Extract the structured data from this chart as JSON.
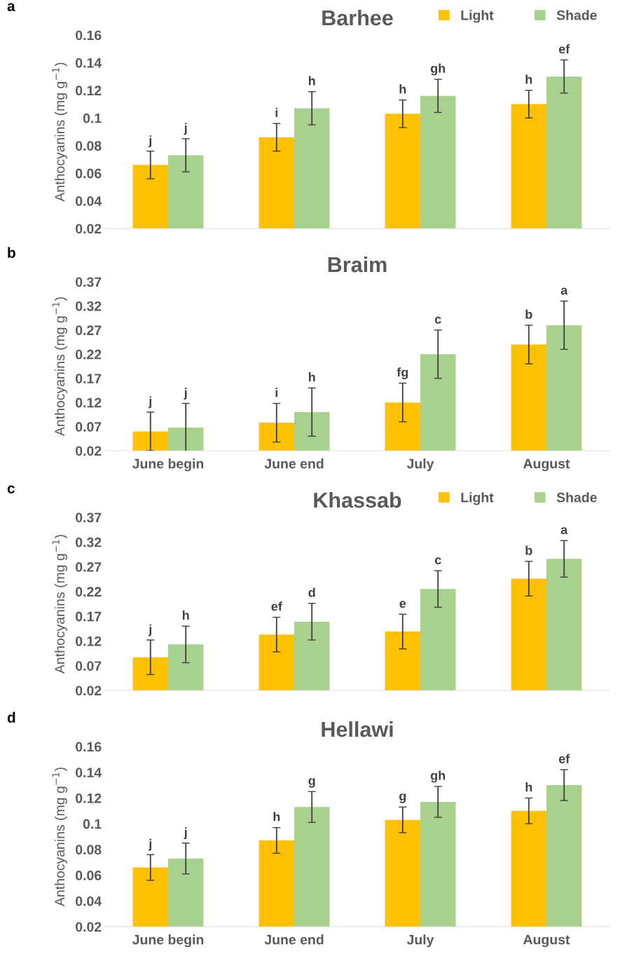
{
  "chart_data": [
    {
      "type": "bar",
      "title": "Barhee",
      "ylabel": "Anthocyanins (mg g$^{−1}$)",
      "annotations": [
        "a"
      ],
      "categories": [
        null,
        null,
        null,
        null
      ],
      "ylim": [
        0.02,
        0.16
      ],
      "yticks": [
        0.02,
        0.04,
        0.06,
        0.08,
        {
          "value": 0.1,
          "label": "0.1"
        },
        0.12,
        0.14,
        0.16
      ],
      "tick_labels": "y",
      "legend": "top right",
      "grid": false,
      "series": [
        {
          "name": "Light",
          "color": "#ffc000",
          "values": [
            0.066,
            0.086,
            0.103,
            0.11
          ],
          "errors": [
            0.01,
            0.01,
            0.01,
            0.01
          ],
          "value_labels": [
            "j",
            "i",
            "h",
            "h"
          ]
        },
        {
          "name": "Shade",
          "color": "#a9d18e",
          "values": [
            0.073,
            0.107,
            0.116,
            0.13
          ],
          "errors": [
            0.012,
            0.012,
            0.012,
            0.012
          ],
          "value_labels": [
            "j",
            "h",
            "gh",
            "ef"
          ]
        }
      ]
    },
    {
      "type": "bar",
      "title": "Braim",
      "ylabel": "Anthocyanins (mg g$^{−1}$)",
      "annotations": [
        "b"
      ],
      "categories": [
        "June begin",
        "June end",
        "July",
        "August"
      ],
      "ylim": [
        0.02,
        0.37
      ],
      "yticks": [
        0.02,
        0.07,
        0.12,
        0.17,
        0.22,
        0.27,
        0.32,
        0.37
      ],
      "legend": false,
      "grid": false,
      "series": [
        {
          "color": "#ffc000",
          "values": [
            0.06,
            0.078,
            0.12,
            0.24
          ],
          "errors": [
            0.04,
            0.04,
            0.04,
            0.04
          ],
          "value_labels": [
            "j",
            "i",
            "fg",
            "b"
          ]
        },
        {
          "color": "#a9d18e",
          "values": [
            0.068,
            0.1,
            0.22,
            0.28
          ],
          "errors": [
            0.05,
            0.05,
            0.05,
            0.05
          ],
          "value_labels": [
            "j",
            "h",
            "c",
            "a"
          ]
        }
      ]
    },
    {
      "type": "bar",
      "title": "Khassab",
      "ylabel": "Anthocyanins (mg g$^{−1}$)",
      "annotations": [
        "c"
      ],
      "categories": [
        null,
        null,
        null,
        null
      ],
      "ylim": [
        0.02,
        0.37
      ],
      "yticks": [
        0.02,
        0.07,
        0.12,
        0.17,
        0.22,
        0.27,
        0.32,
        0.37
      ],
      "tick_labels": "y",
      "legend": "top right",
      "grid": false,
      "series": [
        {
          "name": "Light",
          "color": "#ffc000",
          "values": [
            0.087,
            0.133,
            0.139,
            0.246
          ],
          "errors": [
            0.035,
            0.035,
            0.035,
            0.035
          ],
          "value_labels": [
            "j",
            "ef",
            "e",
            "b"
          ]
        },
        {
          "name": "Shade",
          "color": "#a9d18e",
          "values": [
            0.113,
            0.159,
            0.225,
            0.286
          ],
          "errors": [
            0.037,
            0.037,
            0.037,
            0.037
          ],
          "value_labels": [
            "h",
            "d",
            "c",
            "a"
          ]
        }
      ]
    },
    {
      "type": "bar",
      "title": "Hellawi",
      "ylabel": "Anthocyanins (mg g$^{−1}$)",
      "annotations": [
        "d"
      ],
      "categories": [
        "June begin",
        "June end",
        "July",
        "August"
      ],
      "ylim": [
        0.02,
        0.16
      ],
      "yticks": [
        0.02,
        0.04,
        0.06,
        0.08,
        {
          "value": 0.1,
          "label": "0.1"
        },
        0.12,
        0.14,
        0.16
      ],
      "legend": false,
      "grid": false,
      "series": [
        {
          "color": "#ffc000",
          "values": [
            0.066,
            0.087,
            0.103,
            0.11
          ],
          "errors": [
            0.01,
            0.01,
            0.01,
            0.01
          ],
          "value_labels": [
            "j",
            "h",
            "g",
            "h"
          ]
        },
        {
          "color": "#a9d18e",
          "values": [
            0.073,
            0.113,
            0.117,
            0.13
          ],
          "errors": [
            0.012,
            0.012,
            0.012,
            0.012
          ],
          "value_labels": [
            "j",
            "g",
            "gh",
            "ef"
          ]
        }
      ]
    }
  ]
}
